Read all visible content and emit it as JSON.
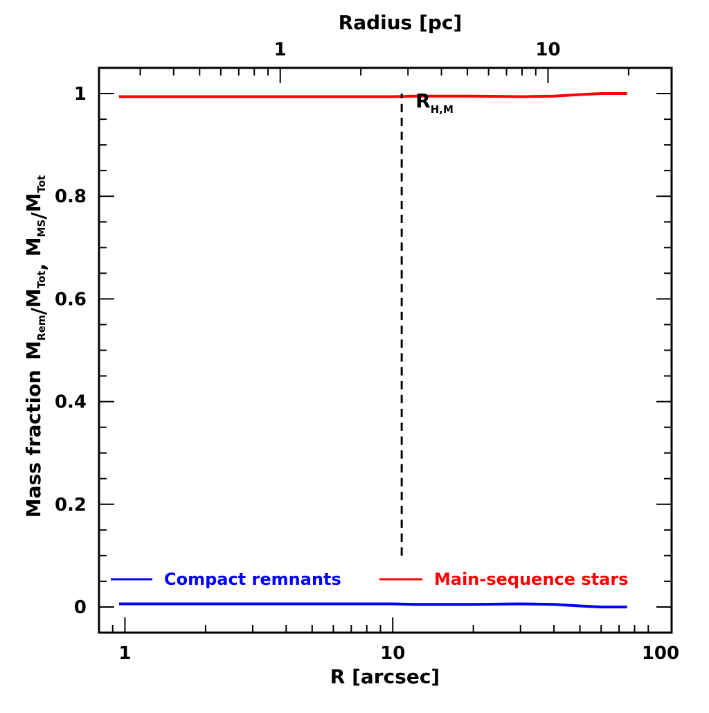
{
  "chart_data": {
    "type": "line",
    "xlabel": "R [arcsec]",
    "x2label": "Radius [pc]",
    "ylabel": {
      "prefix": "Mass fraction",
      "terms": [
        {
          "base": "M",
          "sub": "Rem"
        },
        {
          "text": "/"
        },
        {
          "base": "M",
          "sub": "Tot"
        },
        {
          "text": ", "
        },
        {
          "base": "M",
          "sub": "MS"
        },
        {
          "text": "/"
        },
        {
          "base": "M",
          "sub": "Tot"
        }
      ]
    },
    "xscale": "log",
    "xlim": [
      0.8,
      110
    ],
    "ylim": [
      -0.05,
      1.05
    ],
    "x_ticks": [
      1,
      10,
      100
    ],
    "x_tick_labels": [
      "1",
      "10",
      "100"
    ],
    "y_ticks": [
      0,
      0.2,
      0.4,
      0.6,
      0.8,
      1
    ],
    "y_tick_labels": [
      "0",
      "0.2",
      "0.4",
      "0.6",
      "0.8",
      "1"
    ],
    "x2_ticks_arcsec": [
      3.8,
      38
    ],
    "x2_tick_labels": [
      "1",
      "10"
    ],
    "series": [
      {
        "name": "Compact remnants",
        "color": "#0000ff",
        "x": [
          0.95,
          2,
          5,
          10,
          12,
          20,
          30,
          40,
          50,
          60,
          75
        ],
        "y": [
          0.006,
          0.006,
          0.006,
          0.006,
          0.005,
          0.005,
          0.006,
          0.005,
          0.002,
          0.0,
          0.0
        ]
      },
      {
        "name": "Main-sequence stars",
        "color": "#ff0000",
        "x": [
          0.95,
          2,
          5,
          10,
          12,
          20,
          30,
          40,
          50,
          60,
          75
        ],
        "y": [
          0.994,
          0.994,
          0.994,
          0.994,
          0.995,
          0.995,
          0.994,
          0.995,
          0.998,
          1.0,
          1.0
        ]
      }
    ],
    "reference_line": {
      "label_base": "R",
      "label_sub": "H,M",
      "x": 10.8,
      "y_range": [
        0.1,
        1.0
      ],
      "style": "dashed"
    },
    "legend_placement": "bottom, inside plot"
  }
}
